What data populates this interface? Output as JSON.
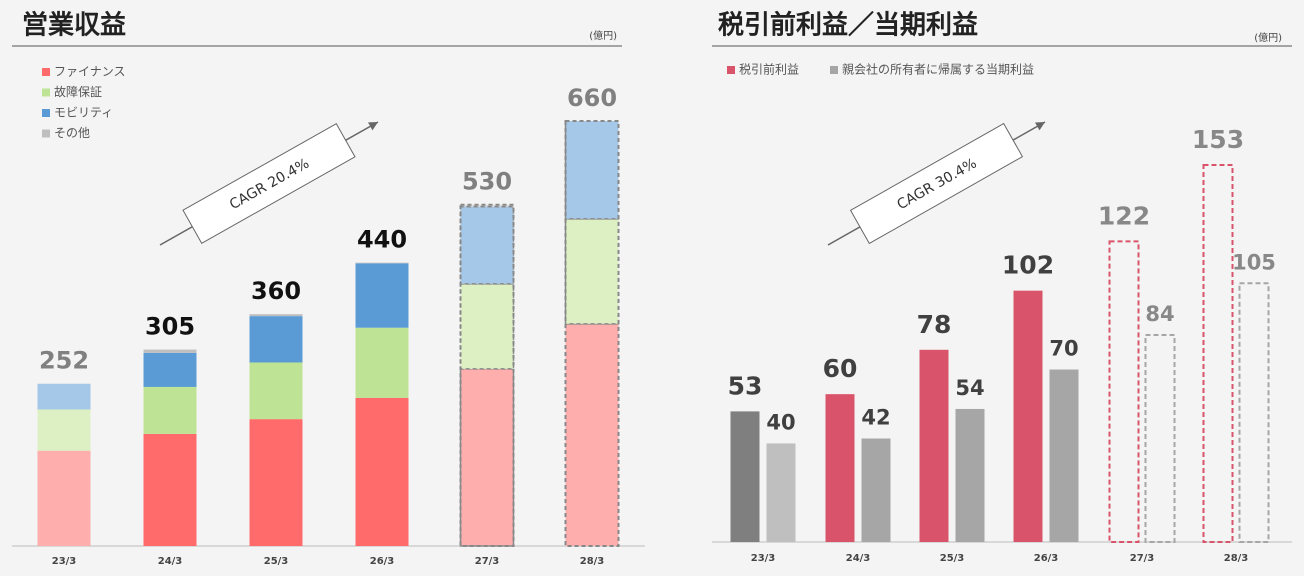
{
  "chart_data": [
    {
      "type": "stacked-bar",
      "title": "営業収益",
      "unit_label": "(億円)",
      "annotation": "CAGR 20.4%",
      "categories": [
        "23/3",
        "24/3",
        "25/3",
        "26/3",
        "27/3",
        "28/3"
      ],
      "series": [
        {
          "name": "ファイナンス",
          "color": "#ff6b6b",
          "values": [
            148,
            174,
            197,
            230,
            275,
            345
          ]
        },
        {
          "name": "故障保証",
          "color": "#bfe394",
          "values": [
            64,
            73,
            88,
            109,
            132,
            163
          ]
        },
        {
          "name": "モビリティ",
          "color": "#5b9bd5",
          "values": [
            40,
            53,
            72,
            100,
            120,
            152
          ]
        },
        {
          "name": "その他",
          "color": "#bfbfbf",
          "values": [
            0,
            5,
            3,
            1,
            3,
            0
          ]
        }
      ],
      "totals": [
        252,
        305,
        360,
        440,
        530,
        660
      ]
    },
    {
      "type": "grouped-bar",
      "title": "税引前利益／当期利益",
      "unit_label": "(億円)",
      "annotation": "CAGR 30.4%",
      "categories": [
        "23/3",
        "24/3",
        "25/3",
        "26/3",
        "27/3",
        "28/3"
      ],
      "series": [
        {
          "name": "税引前利益",
          "color": "#d9546a",
          "values": [
            53,
            60,
            78,
            102,
            122,
            153
          ]
        },
        {
          "name": "親会社の所有者に帰属する当期利益",
          "color": "#a6a6a6",
          "values": [
            40,
            42,
            54,
            70,
            84,
            105
          ]
        }
      ]
    }
  ]
}
